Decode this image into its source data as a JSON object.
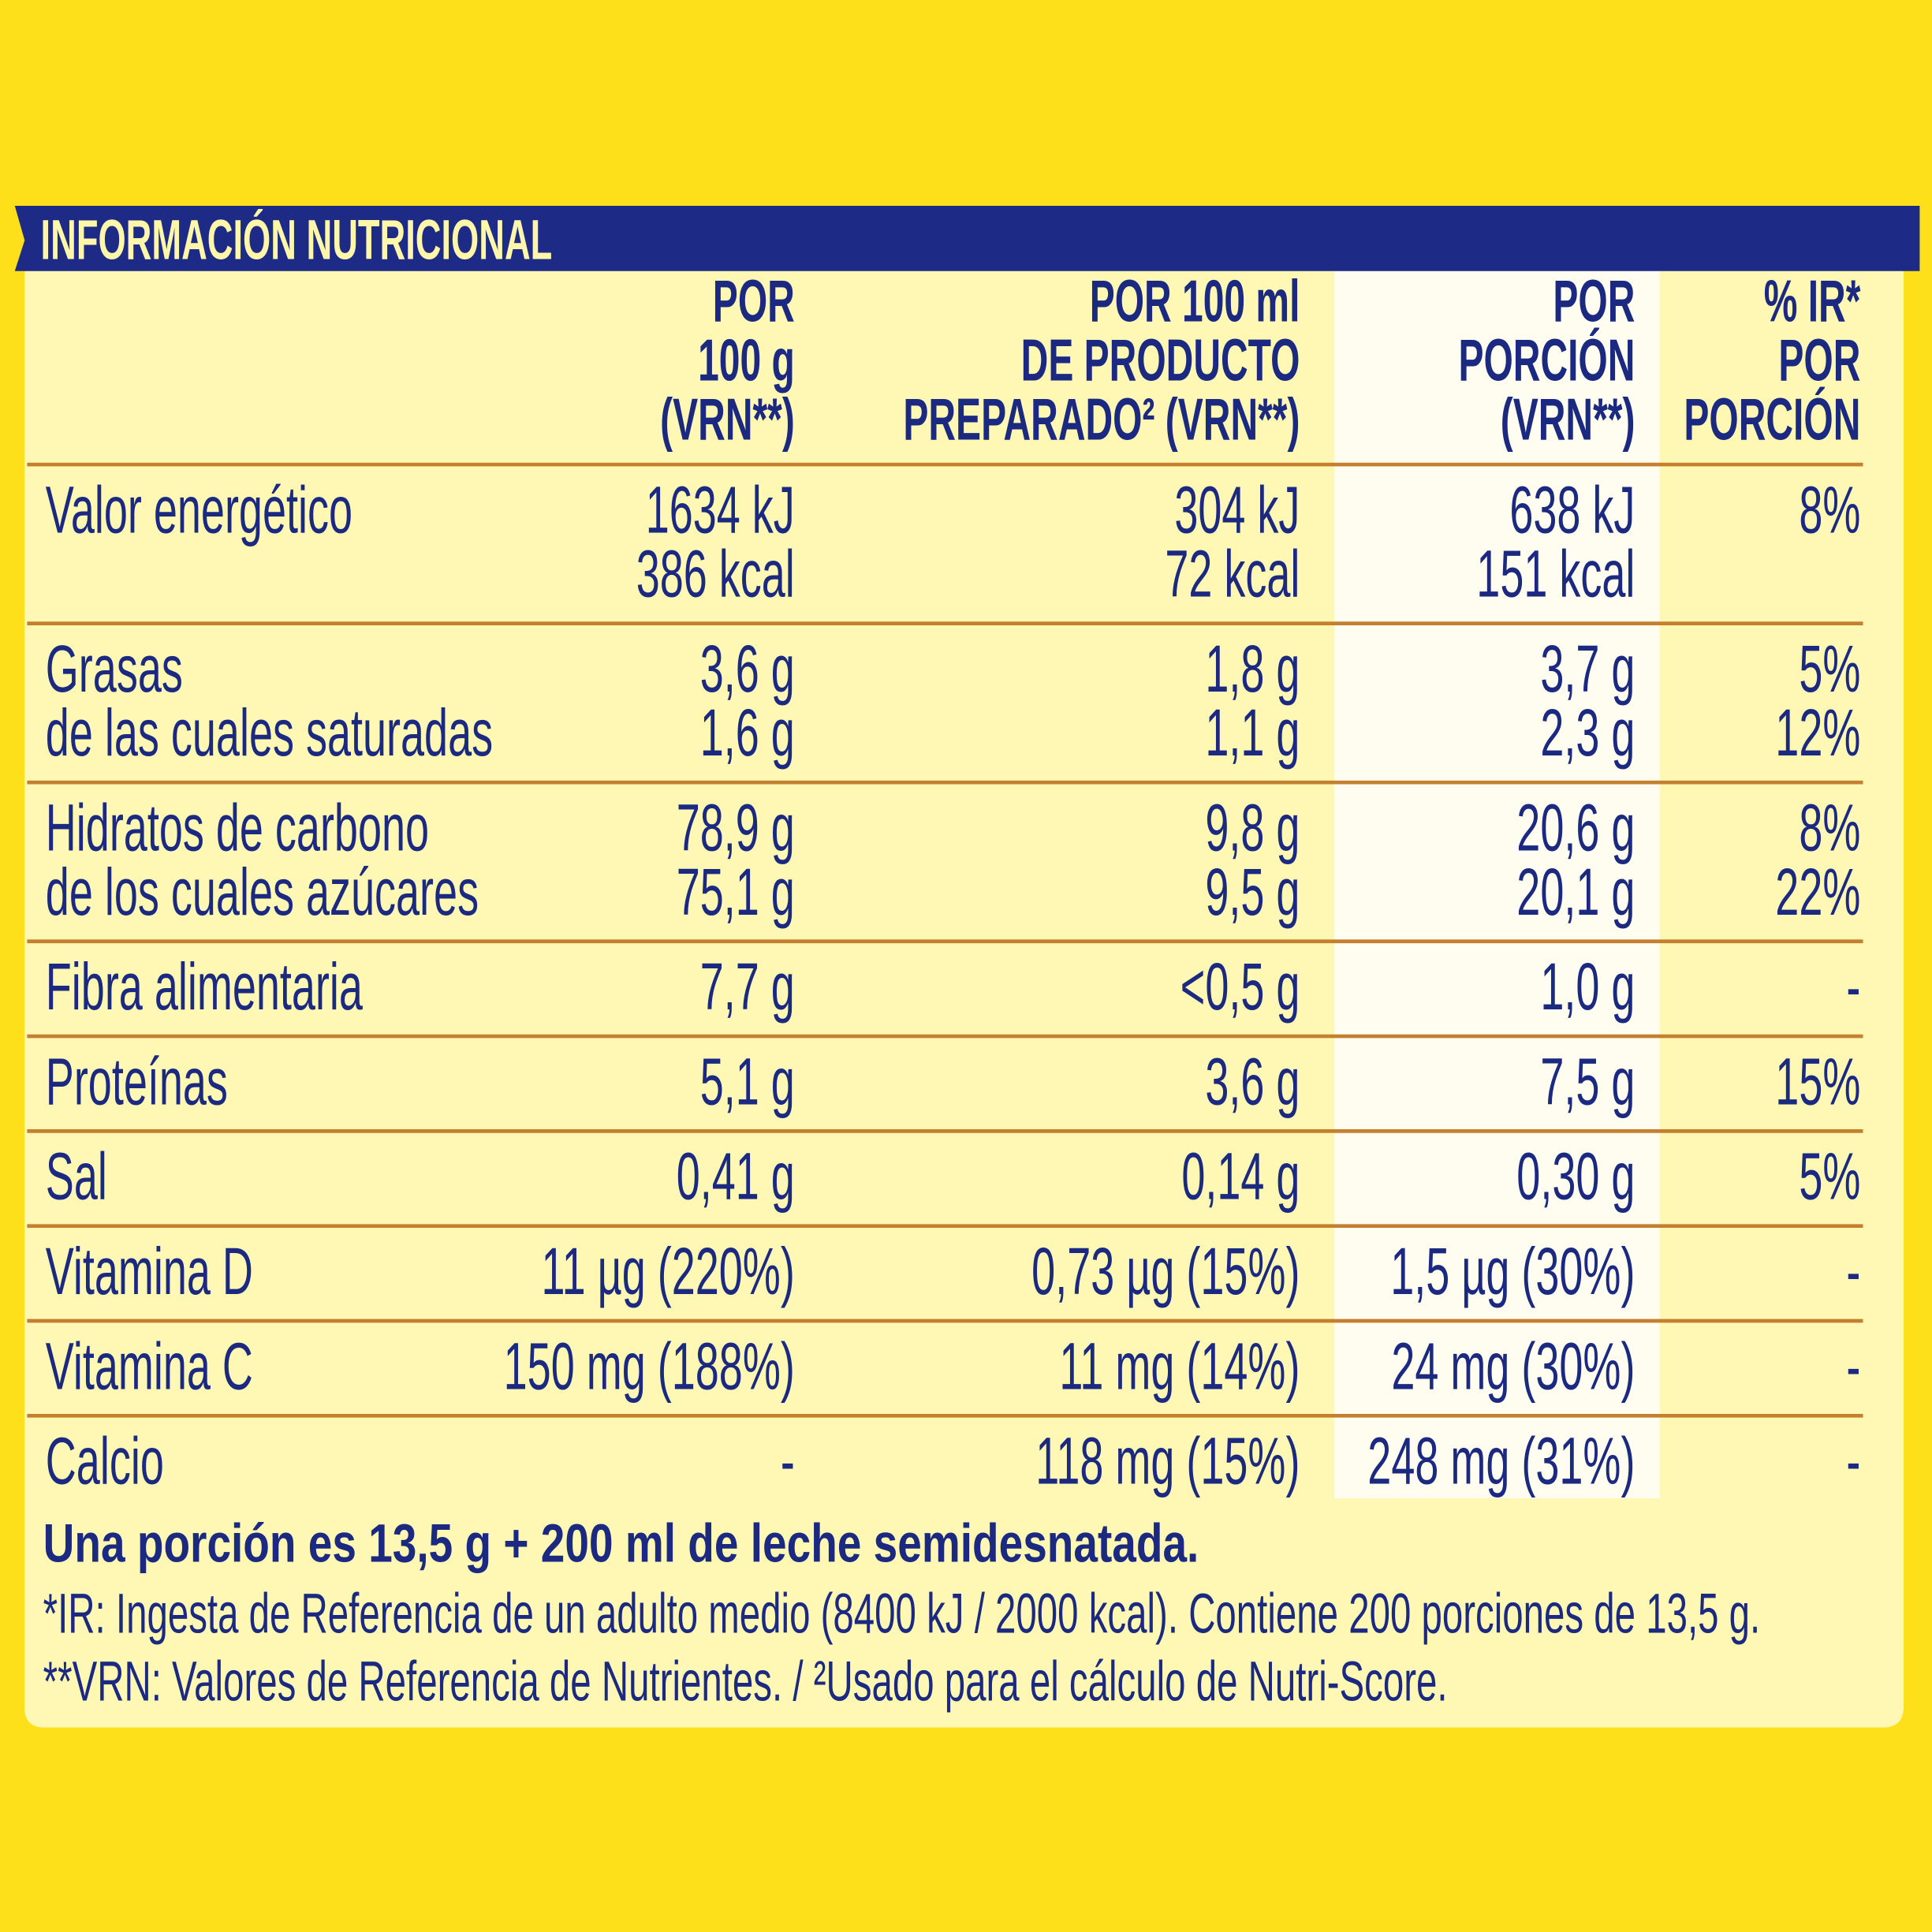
{
  "header": {
    "title": "INFORMACIÓN NUTRICIONAL"
  },
  "table": {
    "columns": [
      [
        "POR",
        "100 g",
        "(VRN**)"
      ],
      [
        "POR 100 ml",
        "DE PRODUCTO",
        "PREPARADO² (VRN**)"
      ],
      [
        "POR",
        "PORCIÓN",
        "(VRN**)"
      ],
      [
        "% IR*",
        "POR",
        "PORCIÓN"
      ]
    ],
    "rows": [
      {
        "label": [
          "Valor energético"
        ],
        "values": [
          [
            "1634 kJ",
            "386 kcal"
          ],
          [
            "304 kJ",
            "72 kcal"
          ],
          [
            "638 kJ",
            "151 kcal"
          ],
          [
            "8%"
          ]
        ]
      },
      {
        "label": [
          "Grasas",
          "de las cuales saturadas"
        ],
        "values": [
          [
            "3,6 g",
            "1,6 g"
          ],
          [
            "1,8 g",
            "1,1 g"
          ],
          [
            "3,7 g",
            "2,3 g"
          ],
          [
            "5%",
            "12%"
          ]
        ]
      },
      {
        "label": [
          "Hidratos de carbono",
          "de los cuales azúcares"
        ],
        "values": [
          [
            "78,9 g",
            "75,1 g"
          ],
          [
            "9,8 g",
            "9,5 g"
          ],
          [
            "20,6 g",
            "20,1 g"
          ],
          [
            "8%",
            "22%"
          ]
        ]
      },
      {
        "label": [
          "Fibra alimentaria"
        ],
        "values": [
          [
            "7,7 g"
          ],
          [
            "<0,5 g"
          ],
          [
            "1,0 g"
          ],
          [
            "-"
          ]
        ]
      },
      {
        "label": [
          "Proteínas"
        ],
        "values": [
          [
            "5,1 g"
          ],
          [
            "3,6 g"
          ],
          [
            "7,5 g"
          ],
          [
            "15%"
          ]
        ]
      },
      {
        "label": [
          "Sal"
        ],
        "values": [
          [
            "0,41 g"
          ],
          [
            "0,14 g"
          ],
          [
            "0,30 g"
          ],
          [
            "5%"
          ]
        ]
      },
      {
        "label": [
          "Vitamina D"
        ],
        "values": [
          [
            "11 µg (220%)"
          ],
          [
            "0,73 µg (15%)"
          ],
          [
            "1,5 µg (30%)"
          ],
          [
            "-"
          ]
        ]
      },
      {
        "label": [
          "Vitamina C"
        ],
        "values": [
          [
            "150 mg (188%)"
          ],
          [
            "11 mg (14%)"
          ],
          [
            "24 mg (30%)"
          ],
          [
            "-"
          ]
        ]
      },
      {
        "label": [
          "Calcio"
        ],
        "values": [
          [
            "-"
          ],
          [
            "118 mg (15%)"
          ],
          [
            "248 mg (31%)"
          ],
          [
            "-"
          ]
        ]
      }
    ]
  },
  "footer": {
    "serving": "Una porción es 13,5 g + 200 ml de leche semidesnatada.",
    "notes": [
      "*IR: Ingesta de Referencia de un adulto medio (8400 kJ / 2000 kcal). Contiene 200 porciones de 13,5 g.",
      "**VRN: Valores de Referencia de Nutrientes. / ²Usado para el cálculo de Nutri-Score."
    ]
  }
}
